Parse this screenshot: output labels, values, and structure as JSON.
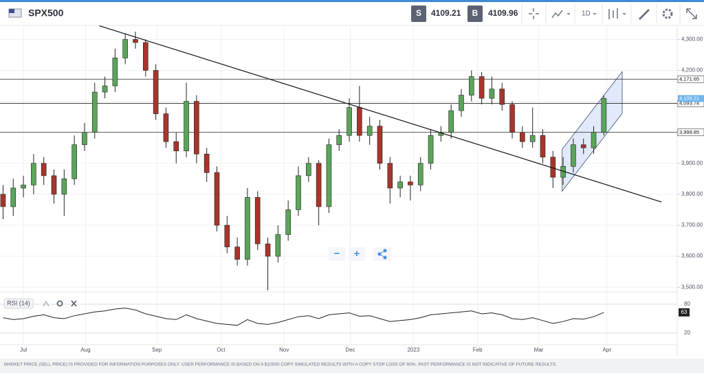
{
  "toolbar": {
    "symbol": "SPX500",
    "sell_label": "S",
    "sell_price": "4109.21",
    "buy_label": "B",
    "buy_price": "4109.96",
    "interval": "1D"
  },
  "zoom_controls": {
    "zoom_out": "−",
    "zoom_in": "+"
  },
  "footer": {
    "disclaimer": "MARKET PRICE (SELL PRICE) IS PROVIDED FOR INFORMATION PURPOSES ONLY. USER PERFORMANCE IS BASED ON A $10000 COPY SIMULATED RESULTS WITH A COPY STOP LOSS OF 60%. PAST PERFORMANCE IS NOT INDICATIVE OF FUTURE RESULTS."
  },
  "chart_data": [
    {
      "type": "candlestick",
      "open": [
        3800,
        3760,
        3820,
        3830,
        3900,
        3860,
        3800,
        3850,
        3960,
        4000,
        4130,
        4150,
        4240,
        4300,
        4290,
        4200,
        4060,
        3970,
        3940,
        4100,
        3930,
        3870,
        3700,
        3630,
        3590,
        3790,
        3640,
        3600,
        3670,
        3750,
        3860,
        3900,
        3760,
        3960,
        3990,
        4080,
        3990,
        4020,
        3900,
        3820,
        3840,
        3830,
        3900,
        3990,
        4000,
        4070,
        4120,
        4180,
        4110,
        4140,
        4090,
        4000,
        3970,
        3990,
        3920,
        3855,
        3890,
        3960,
        3950,
        4000
      ],
      "high": [
        3830,
        3850,
        3860,
        3930,
        3920,
        3880,
        3880,
        3990,
        4030,
        4160,
        4180,
        4270,
        4320,
        4325,
        4300,
        4220,
        4080,
        4000,
        4160,
        4120,
        3950,
        3890,
        3730,
        3660,
        3820,
        3810,
        3660,
        3700,
        3780,
        3890,
        3920,
        3910,
        3980,
        4010,
        4110,
        4150,
        4050,
        4040,
        3920,
        3860,
        3860,
        3920,
        4010,
        4020,
        4090,
        4140,
        4200,
        4195,
        4180,
        4160,
        4100,
        4020,
        4080,
        4010,
        3940,
        3920,
        3980,
        3980,
        4020,
        4120
      ],
      "low": [
        3720,
        3730,
        3790,
        3800,
        3830,
        3770,
        3730,
        3830,
        3940,
        3980,
        4110,
        4130,
        4220,
        4270,
        4180,
        4040,
        3950,
        3900,
        3920,
        3900,
        3840,
        3680,
        3610,
        3570,
        3570,
        3620,
        3490,
        3580,
        3650,
        3730,
        3840,
        3700,
        3740,
        3940,
        3970,
        3970,
        3960,
        3880,
        3770,
        3790,
        3780,
        3810,
        3880,
        3970,
        3980,
        4050,
        4100,
        4090,
        4090,
        4070,
        3980,
        3950,
        3950,
        3900,
        3820,
        3830,
        3870,
        3930,
        3930,
        3990
      ],
      "close": [
        3760,
        3820,
        3830,
        3900,
        3860,
        3800,
        3850,
        3960,
        4000,
        4130,
        4150,
        4240,
        4300,
        4290,
        4200,
        4060,
        3970,
        3940,
        4100,
        3930,
        3870,
        3700,
        3630,
        3590,
        3790,
        3640,
        3600,
        3670,
        3750,
        3860,
        3900,
        3760,
        3960,
        3990,
        4080,
        3990,
        4020,
        3900,
        3820,
        3840,
        3830,
        3900,
        3990,
        4000,
        4070,
        4120,
        4180,
        4110,
        4140,
        4090,
        4000,
        3970,
        3990,
        3920,
        3855,
        3890,
        3960,
        3950,
        4000,
        4109.21
      ],
      "up_color": "#5aa55a",
      "down_color": "#a8352b",
      "xlim": [
        -0.3,
        66.2
      ],
      "xticks": [
        {
          "value": 2.0,
          "label": "Jul"
        },
        {
          "value": 8.1,
          "label": "Aug"
        },
        {
          "value": 15.1,
          "label": "Sep"
        },
        {
          "value": 21.4,
          "label": "Oct"
        },
        {
          "value": 27.6,
          "label": "Nov"
        },
        {
          "value": 34.1,
          "label": "Dec"
        },
        {
          "value": 40.3,
          "label": "2023"
        },
        {
          "value": 46.6,
          "label": "Feb"
        },
        {
          "value": 52.6,
          "label": "Mar"
        },
        {
          "value": 59.3,
          "label": "Apr"
        }
      ],
      "ylim": [
        3485,
        4343
      ],
      "yticks": [
        {
          "value": 4300,
          "label": "4,300.00"
        },
        {
          "value": 4200,
          "label": "4,200.00"
        },
        {
          "value": 4100,
          "label": "4,100.00"
        },
        {
          "value": 4000,
          "label": "4,000.00"
        },
        {
          "value": 3900,
          "label": "3,900.00"
        },
        {
          "value": 3800,
          "label": "3,800.00"
        },
        {
          "value": 3700,
          "label": "3,700.00"
        },
        {
          "value": 3600,
          "label": "3,600.00"
        },
        {
          "value": 3500,
          "label": "3,500.00"
        }
      ],
      "levels": [
        {
          "value": 4171.65,
          "label": "4,171.65"
        },
        {
          "value": 4093.74,
          "label": "4,093.74"
        },
        {
          "value": 3999.85,
          "label": "3,999.85"
        }
      ],
      "last_price": {
        "value": 4109.21,
        "label": "4,109.21"
      },
      "trend_line": {
        "x": [
          9.46,
          64.66
        ],
        "y": [
          4344,
          3775
        ]
      },
      "channel": {
        "x": [
          54.9,
          60.8
        ],
        "lower": [
          3810,
          4061
        ],
        "upper": [
          3945,
          4196
        ]
      },
      "grid": true
    },
    {
      "type": "line",
      "title": "RSI (14)",
      "color": "#222222",
      "values": [
        52,
        48,
        50,
        55,
        58,
        52,
        50,
        56,
        60,
        64,
        66,
        70,
        72,
        68,
        60,
        55,
        50,
        48,
        58,
        50,
        45,
        40,
        38,
        36,
        48,
        40,
        38,
        42,
        48,
        54,
        56,
        50,
        58,
        60,
        62,
        55,
        56,
        50,
        44,
        46,
        48,
        52,
        58,
        60,
        62,
        64,
        66,
        60,
        62,
        58,
        50,
        48,
        52,
        46,
        40,
        44,
        50,
        49,
        54,
        63
      ],
      "xlim": [
        -0.3,
        66.2
      ],
      "ylim": [
        0,
        100
      ],
      "yticks": [
        20,
        80
      ]
    }
  ]
}
